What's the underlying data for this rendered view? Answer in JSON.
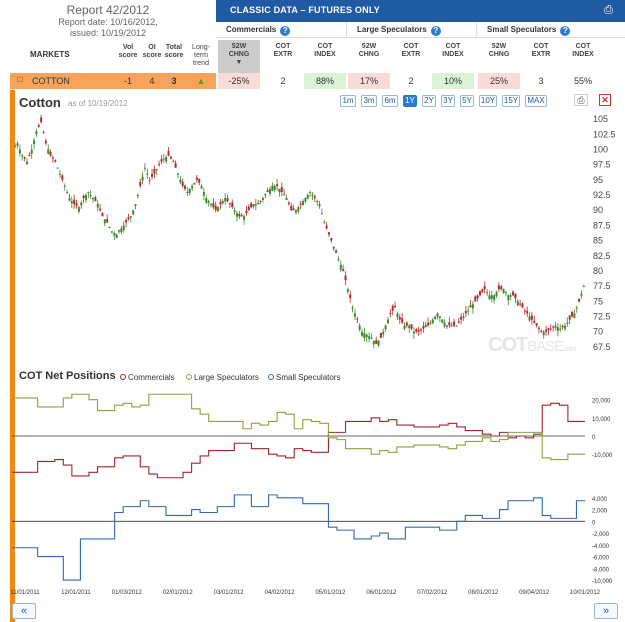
{
  "report": {
    "title": "Report 42/2012",
    "date": "Report date: 10/16/2012,",
    "issued": "issued: 10/19/2012"
  },
  "classic": {
    "label": "CLASSIC DATA – FUTURES ONLY"
  },
  "groups": {
    "commercials": "Commercials",
    "large": "Large Speculators",
    "small": "Small Speculators"
  },
  "headers": {
    "markets": "MARKETS",
    "vol_score": [
      "Vol",
      "score"
    ],
    "oi_score": [
      "OI",
      "score"
    ],
    "total_score": [
      "Total",
      "score"
    ],
    "trend": [
      "Long-",
      "term",
      "trend"
    ],
    "chng": [
      "52W",
      "CHNG"
    ],
    "extr": [
      "COT",
      "EXTR"
    ],
    "index": [
      "COT",
      "INDEX"
    ]
  },
  "row": {
    "market": "COTTON",
    "vol": "-1",
    "oi": "4",
    "total": "3",
    "com": {
      "chng": "-25%",
      "extr": "2",
      "index": "88%"
    },
    "large": {
      "chng": "17%",
      "extr": "2",
      "index": "10%"
    },
    "small": {
      "chng": "25%",
      "extr": "3",
      "index": "55%"
    }
  },
  "chart": {
    "title": "Cotton",
    "asof": "as of 10/19/2012",
    "ranges": [
      "1m",
      "3m",
      "6m",
      "1Y",
      "2Y",
      "3Y",
      "5Y",
      "10Y",
      "15Y",
      "MAX"
    ],
    "active_range": "1Y",
    "print_icon": "⎙",
    "close_icon": "✕"
  },
  "watermark": {
    "a": "COT",
    "b": "BASE",
    "c": ".com"
  },
  "cot": {
    "title": "COT Net Positions",
    "legend": [
      "Commercials",
      "Large Speculators",
      "Small Speculators"
    ],
    "colors": {
      "commercials": "#a0252a",
      "large": "#8aa33a",
      "small": "#2e6ab0"
    }
  },
  "nav": {
    "prev": "«",
    "next": "»"
  },
  "chart_data": [
    {
      "type": "candlestick",
      "title": "Cotton",
      "ylim": [
        66,
        106
      ],
      "yticks": [
        "105",
        "102.5",
        "100",
        "97.5",
        "95",
        "92.5",
        "90",
        "87.5",
        "85",
        "82.5",
        "80",
        "77.5",
        "75",
        "72.5",
        "70",
        "67.5"
      ],
      "path": [
        100,
        101,
        99,
        98,
        100,
        103,
        104.5,
        101,
        99,
        98,
        96,
        94,
        92,
        91,
        90.5,
        92,
        93,
        92,
        91,
        89,
        88,
        86.5,
        86,
        87,
        88,
        89,
        91,
        94,
        97,
        95,
        96,
        97.5,
        98.5,
        99,
        98,
        96,
        94,
        93,
        94,
        95,
        94,
        92,
        91,
        90,
        91,
        92,
        91,
        90,
        89,
        89,
        90,
        91,
        91,
        92,
        93,
        94,
        94,
        93,
        92,
        90,
        90,
        91,
        92,
        93,
        92,
        91,
        88,
        86,
        84,
        82,
        80,
        77,
        74,
        72,
        70,
        69.5,
        69,
        68,
        69,
        71,
        73,
        74,
        72,
        71,
        71,
        70,
        70,
        70.5,
        71,
        72,
        73,
        72,
        71,
        71,
        71,
        72,
        73,
        74,
        75,
        76,
        77,
        76,
        76,
        77,
        77,
        76,
        76,
        75,
        74,
        73,
        72,
        71,
        70,
        70,
        70.5,
        71,
        70.5,
        71,
        72,
        73,
        75,
        77.5
      ]
    },
    {
      "type": "line",
      "title": "COT Net Positions",
      "x_tick_labels": [
        "11/01/2011",
        "12/01/2011",
        "01/03/2012",
        "02/01/2012",
        "03/01/2012",
        "04/02/2012",
        "05/01/2012",
        "06/01/2012",
        "07/02/2012",
        "08/01/2012",
        "09/04/2012",
        "10/01/2012"
      ],
      "upper": {
        "ylim": [
          -27000,
          27000
        ],
        "yticks": [
          "20,000",
          "10,000",
          "0",
          "-10,000"
        ],
        "series": [
          {
            "name": "Commercials",
            "values": [
              -20000,
              -20000,
              -20000,
              -14000,
              -14000,
              -13000,
              -16000,
              -22000,
              -22000,
              -20000,
              -17000,
              -17000,
              -12000,
              -11000,
              -11000,
              -17000,
              -21000,
              -23000,
              -23000,
              -23000,
              -20000,
              -15000,
              -11000,
              -8000,
              -8000,
              -8000,
              -4000,
              -4000,
              -7000,
              -7000,
              -10000,
              -11000,
              -12000,
              -7000,
              -8000,
              -9000,
              -9000,
              2000,
              2000,
              8000,
              8000,
              8000,
              10000,
              8000,
              9000,
              6000,
              6000,
              5000,
              5000,
              5000,
              6000,
              7000,
              5000,
              3000,
              3000,
              1000,
              0,
              2000,
              -1000,
              0,
              -1000,
              1000,
              17000,
              18000,
              17000,
              8000,
              8000
            ]
          },
          {
            "name": "Large Speculators",
            "values": [
              21000,
              21000,
              21000,
              16000,
              16000,
              16000,
              21000,
              23000,
              23000,
              20000,
              14000,
              14000,
              17000,
              18000,
              16000,
              17000,
              23000,
              23000,
              23000,
              23000,
              23000,
              15000,
              12000,
              8000,
              8000,
              8000,
              8000,
              4000,
              7000,
              6000,
              8000,
              13000,
              12000,
              4000,
              9000,
              8000,
              7000,
              -1000,
              -2000,
              -7000,
              -7000,
              -7000,
              -10000,
              -8000,
              -9000,
              -6000,
              -6000,
              -5000,
              -5000,
              -5000,
              -6000,
              -7000,
              -5000,
              -3000,
              -3000,
              -1000,
              -3000,
              -2000,
              2000,
              2000,
              2000,
              2000,
              -12000,
              -13000,
              -13000,
              -10000,
              -10000
            ]
          }
        ]
      },
      "lower": {
        "ylim": [
          -10500,
          5500
        ],
        "yticks": [
          "4,000",
          "2,000",
          "0",
          "-2,000",
          "-4,000",
          "-6,000",
          "-8,000",
          "-10,000"
        ],
        "series": [
          {
            "name": "Small Speculators",
            "values": [
              -4500,
              -4500,
              -4500,
              -6000,
              -6000,
              -6000,
              -10000,
              -10000,
              -3000,
              -3000,
              -3000,
              -3000,
              1500,
              2500,
              2500,
              3500,
              2500,
              2500,
              1000,
              1000,
              1000,
              2000,
              1500,
              1500,
              2500,
              2500,
              4500,
              4500,
              2500,
              2500,
              4500,
              4000,
              4000,
              4000,
              3000,
              3000,
              3000,
              -1000,
              -1500,
              -1500,
              -3000,
              -3000,
              -2500,
              -2000,
              -3000,
              -3000,
              -1000,
              -1000,
              -1000,
              -1000,
              -1500,
              -1500,
              0,
              1000,
              1000,
              500,
              500,
              2000,
              3500,
              3500,
              3500,
              4000,
              1000,
              500,
              500,
              500,
              3500
            ]
          }
        ]
      }
    }
  ]
}
